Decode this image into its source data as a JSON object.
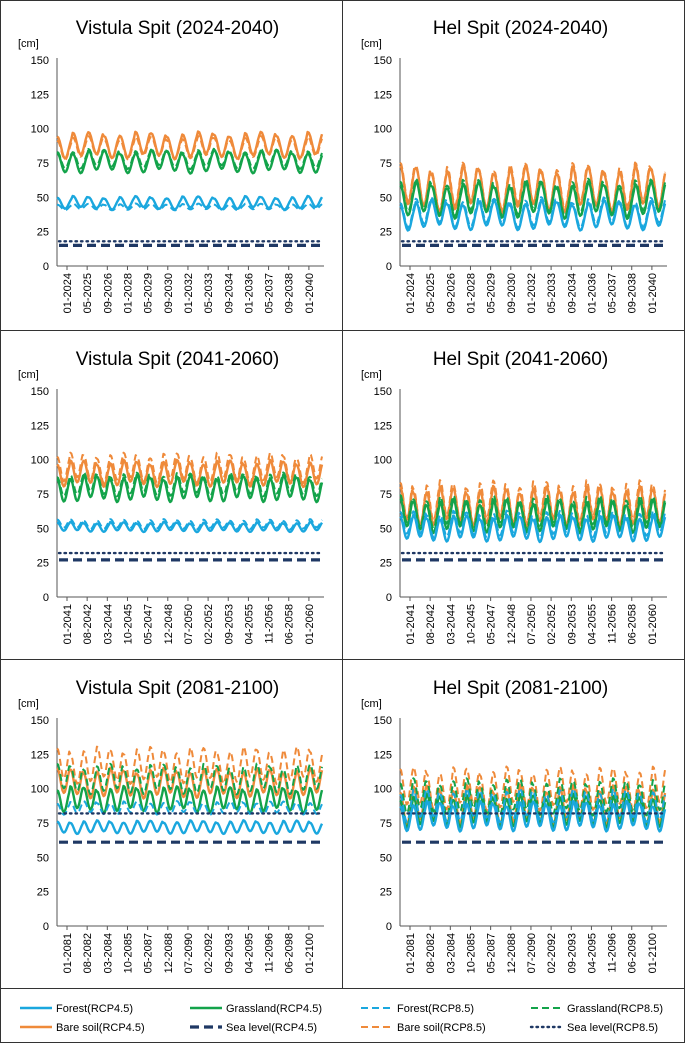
{
  "figure": {
    "unit_label": "[cm]",
    "colors": {
      "forest": "#1aa7de",
      "grassland": "#13a34a",
      "bare_soil": "#ef8a3a",
      "sea_level": "#1f3864"
    }
  },
  "legend": {
    "items": [
      {
        "label": "Forest(RCP4.5)",
        "color": "#1aa7de",
        "style": "solid"
      },
      {
        "label": "Grassland(RCP4.5)",
        "color": "#13a34a",
        "style": "solid"
      },
      {
        "label": "Forest(RCP8.5)",
        "color": "#1aa7de",
        "style": "dashed"
      },
      {
        "label": "Grassland(RCP8.5)",
        "color": "#13a34a",
        "style": "dashed"
      },
      {
        "label": "Bare soil(RCP4.5)",
        "color": "#ef8a3a",
        "style": "solid"
      },
      {
        "label": "Sea level(RCP4.5)",
        "color": "#1f3864",
        "style": "bigdash"
      },
      {
        "label": "Bare soil(RCP8.5)",
        "color": "#ef8a3a",
        "style": "dashed"
      },
      {
        "label": "Sea level(RCP8.5)",
        "color": "#1f3864",
        "style": "dotted"
      }
    ]
  },
  "chart_data": [
    {
      "type": "line",
      "title": "Vistula Spit (2024-2040)",
      "ylabel": "[cm]",
      "ylim": [
        0,
        150
      ],
      "yticks": [
        0,
        25,
        50,
        75,
        100,
        125,
        150
      ],
      "xticks": [
        "01-2024",
        "05-2025",
        "09-2026",
        "01-2028",
        "05-2029",
        "09-2030",
        "01-2032",
        "05-2033",
        "09-2034",
        "01-2036",
        "05-2037",
        "09-2038",
        "01-2040"
      ],
      "x_range": [
        "01-2024",
        "12-2040"
      ],
      "series": [
        {
          "name": "Bare soil(RCP4.5)",
          "base": 88,
          "amp": 8,
          "period": 12
        },
        {
          "name": "Bare soil(RCP8.5)",
          "base": 86,
          "amp": 7,
          "period": 12
        },
        {
          "name": "Grassland(RCP4.5)",
          "base": 76,
          "amp": 7,
          "period": 12
        },
        {
          "name": "Grassland(RCP8.5)",
          "base": 78,
          "amp": 6,
          "period": 12
        },
        {
          "name": "Forest(RCP4.5)",
          "base": 46,
          "amp": 4,
          "period": 12
        },
        {
          "name": "Forest(RCP8.5)",
          "base": 43,
          "amp": 2,
          "period": 12
        },
        {
          "name": "Sea level(RCP8.5)",
          "value": 18
        },
        {
          "name": "Sea level(RCP4.5)",
          "value": 15
        }
      ]
    },
    {
      "type": "line",
      "title": "Hel Spit (2024-2040)",
      "ylabel": "[cm]",
      "ylim": [
        0,
        150
      ],
      "yticks": [
        0,
        25,
        50,
        75,
        100,
        125,
        150
      ],
      "xticks": [
        "01-2024",
        "05-2025",
        "09-2026",
        "01-2028",
        "05-2029",
        "09-2030",
        "01-2032",
        "05-2033",
        "09-2034",
        "01-2036",
        "05-2037",
        "09-2038",
        "01-2040"
      ],
      "x_range": [
        "01-2024",
        "12-2040"
      ],
      "series": [
        {
          "name": "Bare soil(RCP4.5)",
          "base": 56,
          "amp": 14,
          "period": 12
        },
        {
          "name": "Bare soil(RCP8.5)",
          "base": 58,
          "amp": 14,
          "period": 12
        },
        {
          "name": "Grassland(RCP4.5)",
          "base": 48,
          "amp": 11,
          "period": 12
        },
        {
          "name": "Grassland(RCP8.5)",
          "base": 50,
          "amp": 11,
          "period": 12
        },
        {
          "name": "Forest(RCP4.5)",
          "base": 37,
          "amp": 9,
          "period": 12
        },
        {
          "name": "Forest(RCP8.5)",
          "base": 39,
          "amp": 9,
          "period": 12
        },
        {
          "name": "Sea level(RCP8.5)",
          "value": 18
        },
        {
          "name": "Sea level(RCP4.5)",
          "value": 15
        }
      ]
    },
    {
      "type": "line",
      "title": "Vistula Spit (2041-2060)",
      "ylabel": "[cm]",
      "ylim": [
        0,
        150
      ],
      "yticks": [
        0,
        25,
        50,
        75,
        100,
        125,
        150
      ],
      "xticks": [
        "01-2041",
        "08-2042",
        "03-2044",
        "10-2045",
        "05-2047",
        "12-2048",
        "07-2050",
        "02-2052",
        "09-2053",
        "04-2055",
        "11-2056",
        "06-2058",
        "01-2060"
      ],
      "x_range": [
        "01-2041",
        "12-2060"
      ],
      "series": [
        {
          "name": "Bare soil(RCP4.5)",
          "base": 90,
          "amp": 8,
          "period": 12
        },
        {
          "name": "Bare soil(RCP8.5)",
          "base": 94,
          "amp": 9,
          "period": 12
        },
        {
          "name": "Grassland(RCP4.5)",
          "base": 79,
          "amp": 8,
          "period": 12
        },
        {
          "name": "Grassland(RCP8.5)",
          "base": 82,
          "amp": 7,
          "period": 12
        },
        {
          "name": "Forest(RCP4.5)",
          "base": 51,
          "amp": 3,
          "period": 12
        },
        {
          "name": "Forest(RCP8.5)",
          "base": 53,
          "amp": 3,
          "period": 12
        },
        {
          "name": "Sea level(RCP8.5)",
          "value": 32
        },
        {
          "name": "Sea level(RCP4.5)",
          "value": 27
        }
      ]
    },
    {
      "type": "line",
      "title": "Hel Spit (2041-2060)",
      "ylabel": "[cm]",
      "ylim": [
        0,
        150
      ],
      "yticks": [
        0,
        25,
        50,
        75,
        100,
        125,
        150
      ],
      "xticks": [
        "01-2041",
        "08-2042",
        "03-2044",
        "10-2045",
        "05-2047",
        "12-2048",
        "07-2050",
        "02-2052",
        "09-2053",
        "04-2055",
        "11-2056",
        "06-2058",
        "01-2060"
      ],
      "x_range": [
        "01-2041",
        "12-2060"
      ],
      "series": [
        {
          "name": "Bare soil(RCP4.5)",
          "base": 66,
          "amp": 12,
          "period": 12
        },
        {
          "name": "Bare soil(RCP8.5)",
          "base": 69,
          "amp": 13,
          "period": 12
        },
        {
          "name": "Grassland(RCP4.5)",
          "base": 59,
          "amp": 10,
          "period": 12
        },
        {
          "name": "Grassland(RCP8.5)",
          "base": 62,
          "amp": 10,
          "period": 12
        },
        {
          "name": "Forest(RCP4.5)",
          "base": 50,
          "amp": 8,
          "period": 12
        },
        {
          "name": "Forest(RCP8.5)",
          "base": 53,
          "amp": 8,
          "period": 12
        },
        {
          "name": "Sea level(RCP8.5)",
          "value": 32
        },
        {
          "name": "Sea level(RCP4.5)",
          "value": 27
        }
      ]
    },
    {
      "type": "line",
      "title": "Vistula Spit (2081-2100)",
      "ylabel": "[cm]",
      "ylim": [
        0,
        150
      ],
      "yticks": [
        0,
        25,
        50,
        75,
        100,
        125,
        150
      ],
      "xticks": [
        "01-2081",
        "08-2082",
        "03-2084",
        "10-2085",
        "05-2087",
        "12-2088",
        "07-2090",
        "02-2092",
        "09-2093",
        "04-2095",
        "11-2096",
        "06-2098",
        "01-2100"
      ],
      "x_range": [
        "01-2081",
        "12-2100"
      ],
      "series": [
        {
          "name": "Bare soil(RCP8.5)",
          "base": 117,
          "amp": 11,
          "period": 12
        },
        {
          "name": "Bare soil(RCP4.5)",
          "base": 104,
          "amp": 9,
          "period": 12
        },
        {
          "name": "Grassland(RCP8.5)",
          "base": 107,
          "amp": 9,
          "period": 12
        },
        {
          "name": "Grassland(RCP4.5)",
          "base": 92,
          "amp": 8,
          "period": 12
        },
        {
          "name": "Forest(RCP8.5)",
          "base": 86,
          "amp": 4,
          "period": 12
        },
        {
          "name": "Forest(RCP4.5)",
          "base": 72,
          "amp": 4,
          "period": 12
        },
        {
          "name": "Sea level(RCP8.5)",
          "value": 82
        },
        {
          "name": "Sea level(RCP4.5)",
          "value": 61
        }
      ]
    },
    {
      "type": "line",
      "title": "Hel Spit (2081-2100)",
      "ylabel": "[cm]",
      "ylim": [
        0,
        150
      ],
      "yticks": [
        0,
        25,
        50,
        75,
        100,
        125,
        150
      ],
      "xticks": [
        "01-2081",
        "08-2082",
        "03-2084",
        "10-2085",
        "05-2087",
        "12-2088",
        "07-2090",
        "02-2092",
        "09-2093",
        "04-2095",
        "11-2096",
        "06-2098",
        "01-2100"
      ],
      "x_range": [
        "01-2081",
        "12-2100"
      ],
      "series": [
        {
          "name": "Bare soil(RCP8.5)",
          "base": 100,
          "amp": 13,
          "period": 12
        },
        {
          "name": "Bare soil(RCP4.5)",
          "base": 88,
          "amp": 12,
          "period": 12
        },
        {
          "name": "Grassland(RCP8.5)",
          "base": 94,
          "amp": 11,
          "period": 12
        },
        {
          "name": "Grassland(RCP4.5)",
          "base": 84,
          "amp": 10,
          "period": 12
        },
        {
          "name": "Forest(RCP8.5)",
          "base": 88,
          "amp": 10,
          "period": 12
        },
        {
          "name": "Forest(RCP4.5)",
          "base": 80,
          "amp": 9,
          "period": 12
        },
        {
          "name": "Sea level(RCP8.5)",
          "value": 82
        },
        {
          "name": "Sea level(RCP4.5)",
          "value": 61
        }
      ]
    }
  ]
}
